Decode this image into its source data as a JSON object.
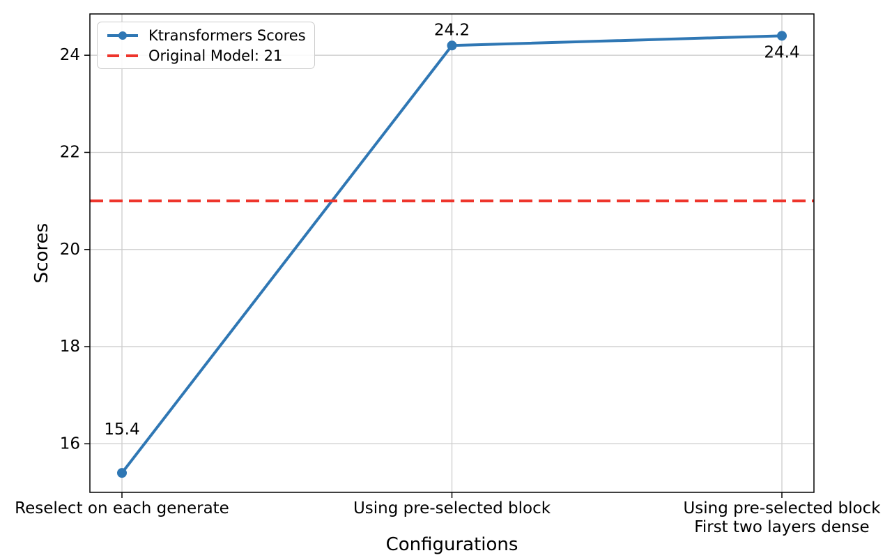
{
  "figure": {
    "background": "#ffffff"
  },
  "chart_data": {
    "type": "line",
    "title": "",
    "xlabel": "Configurations",
    "ylabel": "Scores",
    "categories": [
      "Reselect on each generate",
      "Using pre-selected block",
      "Using pre-selected block\nFirst two layers dense"
    ],
    "series": [
      {
        "name": "Ktransformers Scores",
        "values": [
          15.4,
          24.2,
          24.4
        ],
        "color": "#2f77b4",
        "marker": "circle",
        "line_width": 4
      }
    ],
    "point_labels": [
      "15.4",
      "24.2",
      "24.4"
    ],
    "reference_line": {
      "label": "Original Model: 21",
      "value": 21,
      "color": "#ee352c",
      "style": "dashed"
    },
    "yticks": [
      16,
      18,
      20,
      22,
      24
    ],
    "ylim": [
      15.0,
      24.85
    ],
    "grid": true,
    "grid_color": "#cccccc",
    "axis_color": "#000000",
    "legend_position": "upper-left"
  }
}
